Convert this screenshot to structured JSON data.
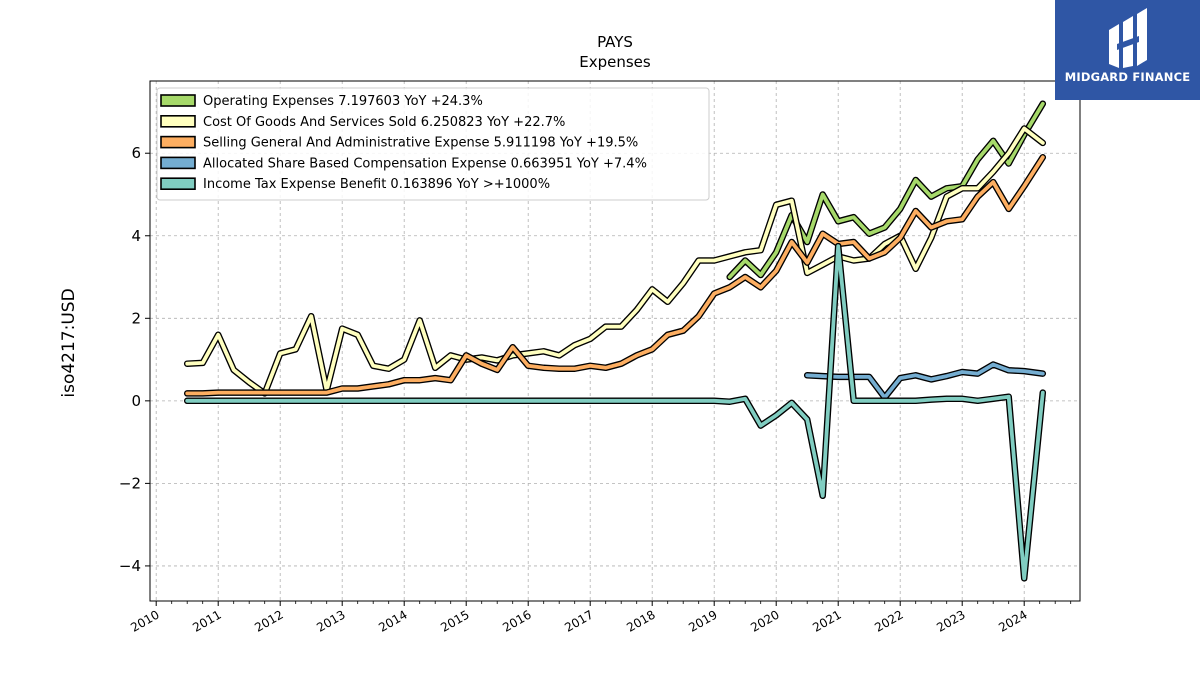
{
  "chart_data": {
    "type": "line",
    "title": "PAYS",
    "subtitle": "Expenses",
    "ylabel": "iso4217:USD",
    "xlabel": "",
    "xlim": [
      2009.9,
      2024.9
    ],
    "ylim": [
      -4.85,
      7.75
    ],
    "x_ticks": [
      2010,
      2011,
      2012,
      2013,
      2014,
      2015,
      2016,
      2017,
      2018,
      2019,
      2020,
      2021,
      2022,
      2023,
      2024
    ],
    "y_ticks": [
      -4,
      -2,
      0,
      2,
      4,
      6
    ],
    "y_tick_labels": [
      "−4",
      "−2",
      "0",
      "2",
      "4",
      "6"
    ],
    "grid": true,
    "legend_position": "top-left",
    "series": [
      {
        "name": "Operating Expenses",
        "legend": "Operating Expenses  7.197603 YoY +24.3%",
        "color": "#a6d96a",
        "x": [
          2019.25,
          2019.5,
          2019.75,
          2020.0,
          2020.25,
          2020.5,
          2020.75,
          2021.0,
          2021.25,
          2021.5,
          2021.75,
          2022.0,
          2022.25,
          2022.5,
          2022.75,
          2023.0,
          2023.25,
          2023.5,
          2023.75,
          2024.0,
          2024.3
        ],
        "values": [
          3.0,
          3.4,
          3.05,
          3.6,
          4.5,
          3.85,
          5.0,
          4.35,
          4.45,
          4.05,
          4.2,
          4.65,
          5.35,
          4.95,
          5.15,
          5.2,
          5.85,
          6.3,
          5.75,
          6.45,
          7.2
        ]
      },
      {
        "name": "Cost Of Goods And Services Sold",
        "legend": "Cost Of Goods And Services Sold  6.250823 YoY +22.7%",
        "color": "#ffffbf",
        "x": [
          2010.5,
          2010.75,
          2011.0,
          2011.25,
          2011.5,
          2011.75,
          2012.0,
          2012.25,
          2012.5,
          2012.75,
          2013.0,
          2013.25,
          2013.5,
          2013.75,
          2014.0,
          2014.25,
          2014.5,
          2014.75,
          2015.0,
          2015.25,
          2015.5,
          2015.75,
          2016.0,
          2016.25,
          2016.5,
          2016.75,
          2017.0,
          2017.25,
          2017.5,
          2017.75,
          2018.0,
          2018.25,
          2018.5,
          2018.75,
          2019.0,
          2019.25,
          2019.5,
          2019.75,
          2020.0,
          2020.25,
          2020.5,
          2020.75,
          2021.0,
          2021.25,
          2021.5,
          2021.75,
          2022.0,
          2022.25,
          2022.5,
          2022.75,
          2023.0,
          2023.25,
          2023.5,
          2023.75,
          2024.0,
          2024.3
        ],
        "values": [
          0.9,
          0.92,
          1.6,
          0.75,
          0.45,
          0.18,
          1.15,
          1.25,
          2.05,
          0.25,
          1.75,
          1.6,
          0.85,
          0.78,
          1.0,
          1.95,
          0.8,
          1.1,
          1.0,
          1.05,
          0.98,
          1.1,
          1.15,
          1.2,
          1.1,
          1.35,
          1.5,
          1.8,
          1.8,
          2.2,
          2.7,
          2.4,
          2.85,
          3.4,
          3.4,
          3.5,
          3.6,
          3.65,
          4.75,
          4.85,
          3.1,
          3.3,
          3.5,
          3.4,
          3.45,
          3.8,
          4.0,
          3.2,
          3.95,
          4.95,
          5.15,
          5.15,
          5.55,
          6.0,
          6.6,
          6.25
        ]
      },
      {
        "name": "Selling General And Administrative Expense",
        "legend": "Selling General And Administrative Expense  5.911198 YoY +19.5%",
        "color": "#fdae61",
        "x": [
          2010.5,
          2010.75,
          2011.0,
          2011.25,
          2011.5,
          2011.75,
          2012.0,
          2012.25,
          2012.5,
          2012.75,
          2013.0,
          2013.25,
          2013.5,
          2013.75,
          2014.0,
          2014.25,
          2014.5,
          2014.75,
          2015.0,
          2015.25,
          2015.5,
          2015.75,
          2016.0,
          2016.25,
          2016.5,
          2016.75,
          2017.0,
          2017.25,
          2017.5,
          2017.75,
          2018.0,
          2018.25,
          2018.5,
          2018.75,
          2019.0,
          2019.25,
          2019.5,
          2019.75,
          2020.0,
          2020.25,
          2020.5,
          2020.75,
          2021.0,
          2021.25,
          2021.5,
          2021.75,
          2022.0,
          2022.25,
          2022.5,
          2022.75,
          2023.0,
          2023.25,
          2023.5,
          2023.75,
          2024.0,
          2024.3
        ],
        "values": [
          0.18,
          0.18,
          0.2,
          0.2,
          0.2,
          0.2,
          0.2,
          0.2,
          0.2,
          0.2,
          0.3,
          0.3,
          0.35,
          0.4,
          0.5,
          0.5,
          0.55,
          0.5,
          1.1,
          0.9,
          0.75,
          1.3,
          0.85,
          0.8,
          0.78,
          0.78,
          0.85,
          0.8,
          0.9,
          1.1,
          1.25,
          1.6,
          1.7,
          2.05,
          2.6,
          2.75,
          3.0,
          2.75,
          3.15,
          3.85,
          3.35,
          4.05,
          3.8,
          3.85,
          3.45,
          3.6,
          3.95,
          4.6,
          4.2,
          4.35,
          4.4,
          4.95,
          5.3,
          4.65,
          5.2,
          5.9
        ]
      },
      {
        "name": "Allocated Share Based Compensation Expense",
        "legend": "Allocated Share Based Compensation Expense  0.663951 YoY +7.4%",
        "color": "#74add1",
        "x": [
          2020.5,
          2020.75,
          2021.0,
          2021.25,
          2021.5,
          2021.75,
          2022.0,
          2022.25,
          2022.5,
          2022.75,
          2023.0,
          2023.25,
          2023.5,
          2023.75,
          2024.0,
          2024.3
        ],
        "values": [
          0.62,
          0.6,
          0.58,
          0.58,
          0.58,
          0.08,
          0.55,
          0.62,
          0.52,
          0.6,
          0.7,
          0.66,
          0.88,
          0.74,
          0.72,
          0.66
        ]
      },
      {
        "name": "Income Tax Expense Benefit",
        "legend": "Income Tax Expense Benefit  0.163896 YoY >+1000%",
        "color": "#80cdc1",
        "x": [
          2010.5,
          2011.0,
          2012.0,
          2013.0,
          2014.0,
          2015.0,
          2016.0,
          2017.0,
          2018.0,
          2019.0,
          2019.25,
          2019.5,
          2019.75,
          2020.0,
          2020.25,
          2020.5,
          2020.75,
          2021.0,
          2021.25,
          2021.5,
          2021.75,
          2022.0,
          2022.25,
          2022.5,
          2022.75,
          2023.0,
          2023.25,
          2023.5,
          2023.75,
          2024.0,
          2024.3
        ],
        "values": [
          0.0,
          0.0,
          0.0,
          0.0,
          0.0,
          0.0,
          0.0,
          0.0,
          0.0,
          0.0,
          -0.02,
          0.05,
          -0.6,
          -0.35,
          -0.05,
          -0.45,
          -2.3,
          3.75,
          0.0,
          0.0,
          0.0,
          0.0,
          0.0,
          0.03,
          0.05,
          0.05,
          0.0,
          0.05,
          0.1,
          -4.3,
          0.2
        ]
      }
    ]
  },
  "brand": {
    "name": "MIDGARD FINANCE",
    "color": "#2f56a5"
  }
}
